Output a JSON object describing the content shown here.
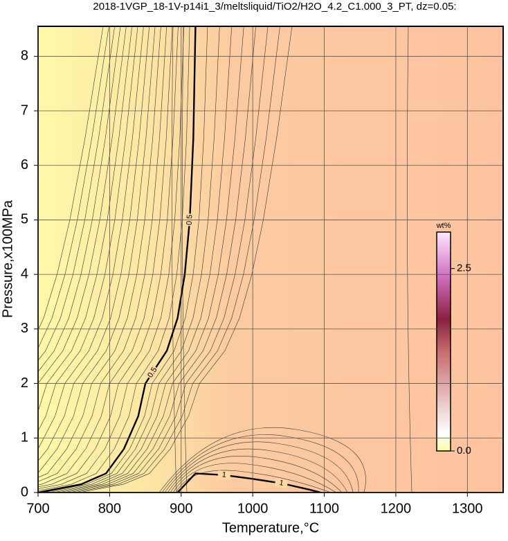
{
  "chart_data": {
    "type": "contour",
    "title": "2018-1VGP_18-1V-p14i1_3/meltsliquid/TiO2/H2O_4.2_C1.000_3_PT, dz=0.05:",
    "x_label": "Temperature,°C",
    "y_label": "Pressure,x100MPa",
    "xlim": [
      700,
      1350
    ],
    "ylim": [
      0,
      8.55
    ],
    "xticks": [
      700,
      800,
      900,
      1000,
      1100,
      1200,
      1300
    ],
    "yticks": [
      0,
      1,
      2,
      3,
      4,
      5,
      6,
      7,
      8
    ],
    "grid": true,
    "contours": [
      {
        "level": 0.5,
        "color": "#000000",
        "x": [
          700,
          760,
          795,
          820,
          840,
          850,
          860,
          880,
          895,
          905,
          912,
          917,
          920
        ],
        "y": [
          0,
          0.15,
          0.35,
          0.8,
          1.4,
          2.0,
          2.2,
          2.6,
          3.2,
          4.0,
          5.0,
          6.5,
          8.55
        ]
      },
      {
        "level": 1,
        "color": "#000000",
        "x": [
          895,
          920,
          960,
          1000,
          1040,
          1080,
          1095
        ],
        "y": [
          0,
          0.35,
          0.32,
          0.25,
          0.17,
          0.05,
          0
        ]
      }
    ],
    "colorbar": {
      "label": "wt%",
      "lim": [
        0,
        3.0
      ],
      "ticks": [
        {
          "value": 0,
          "label": "0.0"
        },
        2.5
      ]
    }
  }
}
